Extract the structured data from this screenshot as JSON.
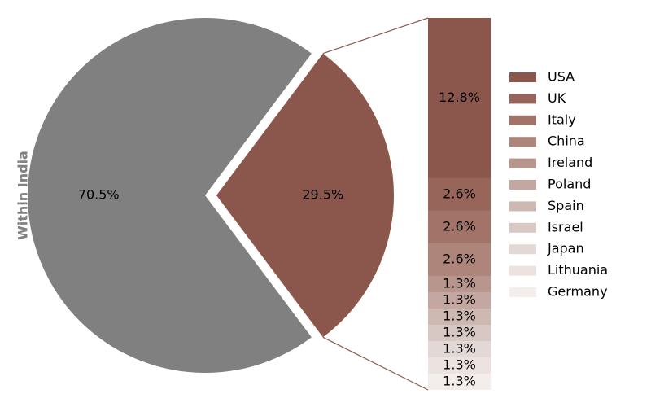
{
  "chart_data": [
    {
      "type": "pie",
      "ylabel": "Within India",
      "slices": [
        {
          "label": "Within India",
          "value": 70.5,
          "display": "70.5%",
          "color": "#808080",
          "exploded": false
        },
        {
          "label": "",
          "value": 29.5,
          "display": "29.5%",
          "color": "#8b564c",
          "exploded": true
        }
      ]
    },
    {
      "type": "bar",
      "stacked": true,
      "categories": [
        "USA",
        "UK",
        "Italy",
        "China",
        "Ireland",
        "Poland",
        "Spain",
        "Israel",
        "Japan",
        "Lithuania",
        "Germany"
      ],
      "values": [
        12.8,
        2.6,
        2.6,
        2.6,
        1.3,
        1.3,
        1.3,
        1.3,
        1.3,
        1.3,
        1.3
      ],
      "labels": [
        "12.8%",
        "2.6%",
        "2.6%",
        "2.6%",
        "1.3%",
        "1.3%",
        "1.3%",
        "1.3%",
        "1.3%",
        "1.3%",
        "1.3%"
      ],
      "colors": [
        "#8b564c",
        "#976559",
        "#a27469",
        "#ad857b",
        "#b8958d",
        "#c3a7a0",
        "#ceb8b2",
        "#d8c8c4",
        "#e2d8d5",
        "#ece3e1",
        "#f3eeec"
      ],
      "legend": "right"
    }
  ]
}
